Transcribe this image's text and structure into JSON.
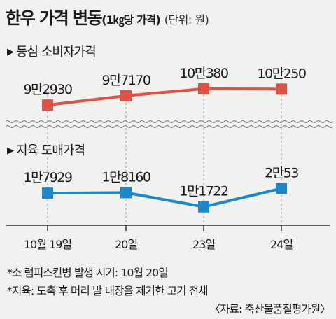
{
  "header": {
    "title_main": "한우 가격 변동",
    "title_per": "(1㎏당 가격)",
    "unit": "(단위: 원)"
  },
  "chart_data": {
    "type": "line",
    "x": [
      "10월 19일",
      "20일",
      "23일",
      "24일"
    ],
    "series": [
      {
        "name": "등심 소비자가격",
        "values": [
          92930,
          97170,
          100380,
          100250
        ],
        "labels": [
          "9만2930",
          "9만7170",
          "10만380",
          "10만250"
        ],
        "color": "#dd5244"
      },
      {
        "name": "지육 도매가격",
        "values": [
          17929,
          18160,
          11722,
          20053
        ],
        "labels": [
          "1만7929",
          "1만8160",
          "1만1722",
          "2만53"
        ],
        "color": "#1e87c8"
      }
    ],
    "grid": "vertical dashed",
    "axis_break": true
  },
  "notes": [
    "*소 럼피스킨병 발생 시기: 10월 20일",
    "*지육: 도축 후 머리 발 내장을 제거한 고기 전체"
  ],
  "source": "〈자료: 축산물품질평가원〉"
}
